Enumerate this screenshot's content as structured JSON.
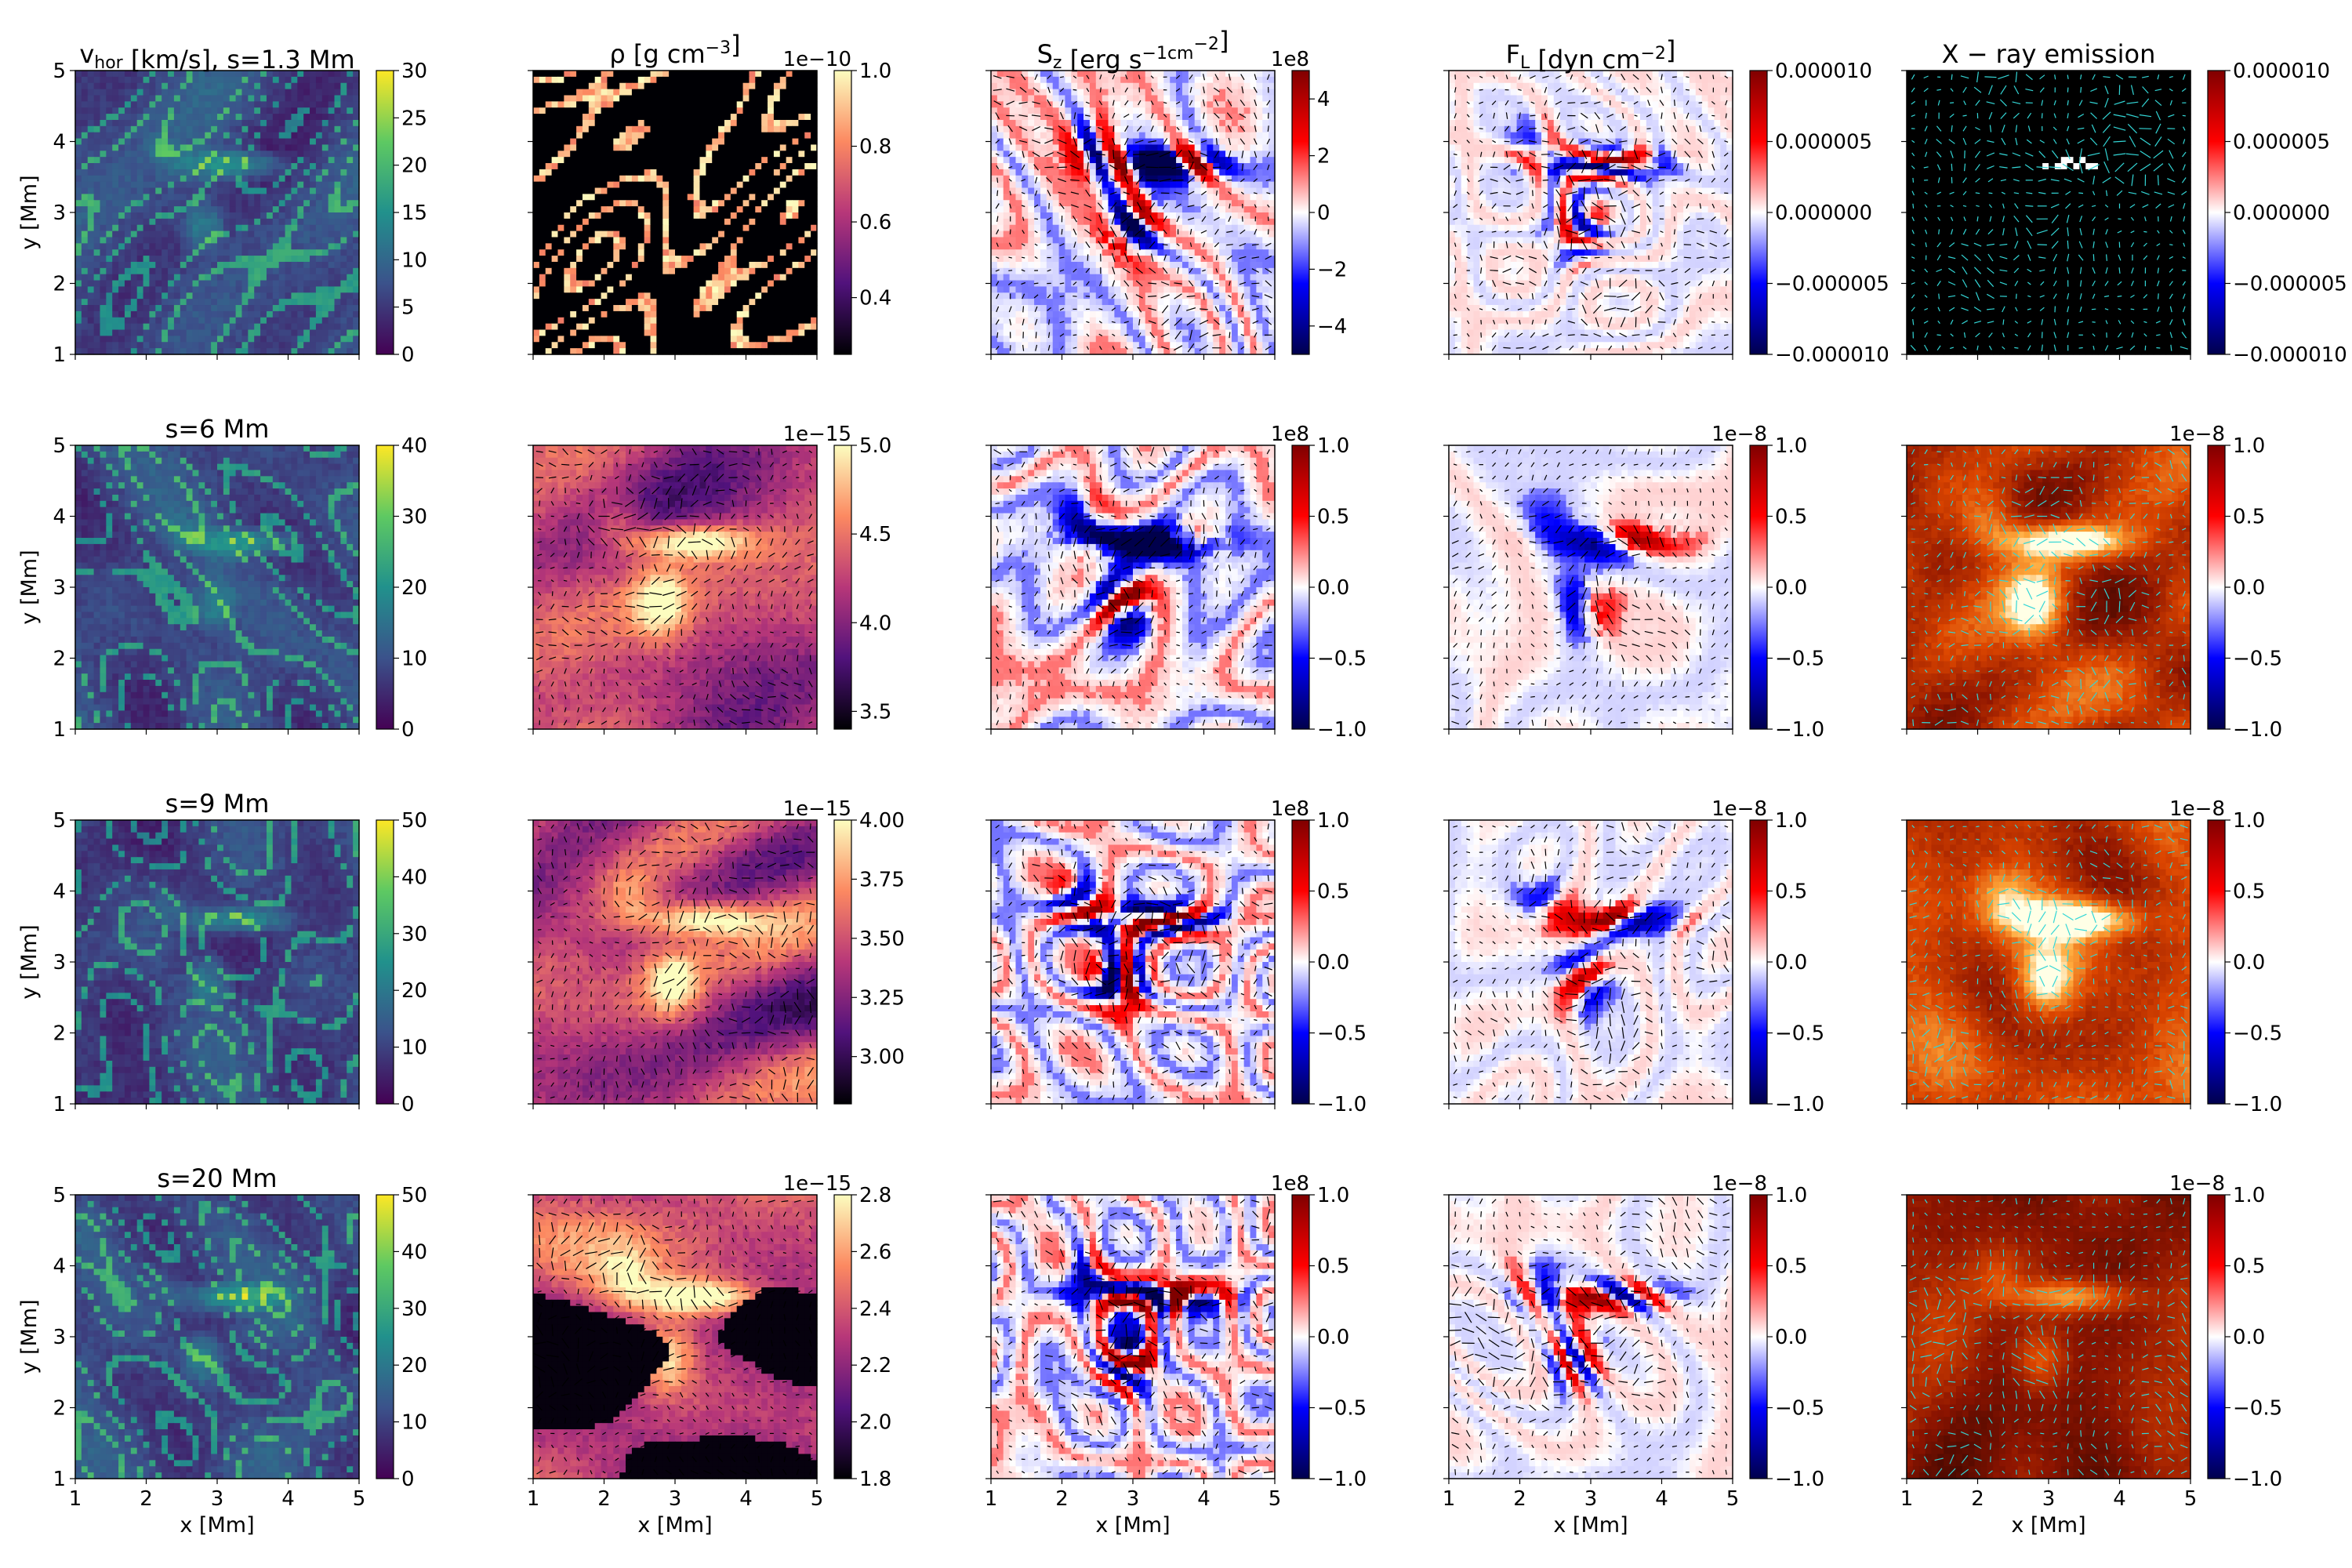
{
  "figure": {
    "rows": [
      {
        "s_label": "s=1.3 Mm"
      },
      {
        "s_label": "s=6 Mm"
      },
      {
        "s_label": "s=9 Mm"
      },
      {
        "s_label": "s=20 Mm"
      }
    ],
    "columns": [
      {
        "quantity": "v_hor [km/s]",
        "colormap": "viridis"
      },
      {
        "quantity": "ρ [g cm^-3]",
        "colormap": "magma"
      },
      {
        "quantity": "S_z [erg s^-1 cm^-2]",
        "colormap": "seismic"
      },
      {
        "quantity": "F_L [dyn cm^-2]",
        "colormap": "seismic"
      },
      {
        "quantity": "X-ray emission",
        "colormap": "seismic-over-hot"
      }
    ]
  },
  "chart_data": [
    {
      "type": "heatmap",
      "row": 0,
      "col": 0,
      "title": "v_hor [km/s],  s=1.3 Mm",
      "xlabel": "",
      "ylabel": "y [Mm]",
      "xlim": [
        1,
        5
      ],
      "ylim": [
        1,
        5
      ],
      "xticks": [
        "",
        "",
        "",
        "",
        ""
      ],
      "yticks": [
        "1",
        "2",
        "3",
        "4",
        "5"
      ],
      "cmap": "viridis",
      "vmin": 0,
      "vmax": 30,
      "cbar_ticks": [
        "0",
        "5",
        "10",
        "15",
        "20",
        "25",
        "30"
      ],
      "cbar_offset": "",
      "arrows": false
    },
    {
      "type": "heatmap",
      "row": 0,
      "col": 1,
      "title": "ρ [g cm^-3]",
      "xlabel": "",
      "ylabel": "",
      "xlim": [
        1,
        5
      ],
      "ylim": [
        1,
        5
      ],
      "xticks": [
        "",
        "",
        "",
        "",
        ""
      ],
      "yticks": [
        "",
        "",
        "",
        "",
        ""
      ],
      "cmap": "magma",
      "vmin": 0.25,
      "vmax": 1.0,
      "cbar_ticks": [
        "0.4",
        "0.6",
        "0.8",
        "1.0"
      ],
      "cbar_offset": "1e−10",
      "arrows": false
    },
    {
      "type": "heatmap",
      "row": 0,
      "col": 2,
      "title": "S_z [erg s^-1cm^-2]",
      "xlabel": "",
      "ylabel": "",
      "xlim": [
        1,
        5
      ],
      "ylim": [
        1,
        5
      ],
      "xticks": [
        "",
        "",
        "",
        "",
        ""
      ],
      "yticks": [
        "",
        "",
        "",
        "",
        ""
      ],
      "cmap": "seismic",
      "vmin": -5,
      "vmax": 5,
      "cbar_ticks": [
        "−4",
        "−2",
        "0",
        "2",
        "4"
      ],
      "cbar_offset": "1e8",
      "arrows": true
    },
    {
      "type": "heatmap",
      "row": 0,
      "col": 3,
      "title": "F_L [dyn cm^-2]",
      "xlabel": "",
      "ylabel": "",
      "xlim": [
        1,
        5
      ],
      "ylim": [
        1,
        5
      ],
      "xticks": [
        "",
        "",
        "",
        "",
        ""
      ],
      "yticks": [
        "",
        "",
        "",
        "",
        ""
      ],
      "cmap": "seismic",
      "vmin": -1e-05,
      "vmax": 1e-05,
      "cbar_ticks": [
        "−0.000010",
        "−0.000005",
        "0.000000",
        "0.000005",
        "0.000010"
      ],
      "cbar_offset": "",
      "arrows": true
    },
    {
      "type": "heatmap",
      "row": 0,
      "col": 4,
      "title": "X − ray emission",
      "xlabel": "",
      "ylabel": "",
      "xlim": [
        1,
        5
      ],
      "ylim": [
        1,
        5
      ],
      "xticks": [
        "",
        "",
        "",
        "",
        ""
      ],
      "yticks": [
        "",
        "",
        "",
        "",
        ""
      ],
      "cmap": "seismic",
      "vmin": -1e-05,
      "vmax": 1e-05,
      "cbar_ticks": [
        "−0.000010",
        "−0.000005",
        "0.000000",
        "0.000005",
        "0.000010"
      ],
      "cbar_offset": "",
      "arrows": true
    },
    {
      "type": "heatmap",
      "row": 1,
      "col": 0,
      "title": "s=6 Mm",
      "xlabel": "",
      "ylabel": "y [Mm]",
      "xlim": [
        1,
        5
      ],
      "ylim": [
        1,
        5
      ],
      "xticks": [
        "",
        "",
        "",
        "",
        ""
      ],
      "yticks": [
        "1",
        "2",
        "3",
        "4",
        "5"
      ],
      "cmap": "viridis",
      "vmin": 0,
      "vmax": 40,
      "cbar_ticks": [
        "0",
        "10",
        "20",
        "30",
        "40"
      ],
      "cbar_offset": "",
      "arrows": false
    },
    {
      "type": "heatmap",
      "row": 1,
      "col": 1,
      "title": "",
      "xlabel": "",
      "ylabel": "",
      "xlim": [
        1,
        5
      ],
      "ylim": [
        1,
        5
      ],
      "xticks": [
        "",
        "",
        "",
        "",
        ""
      ],
      "yticks": [
        "",
        "",
        "",
        "",
        ""
      ],
      "cmap": "magma",
      "vmin": 3.4,
      "vmax": 5.0,
      "cbar_ticks": [
        "3.5",
        "4.0",
        "4.5",
        "5.0"
      ],
      "cbar_offset": "1e−15",
      "arrows": true
    },
    {
      "type": "heatmap",
      "row": 1,
      "col": 2,
      "title": "",
      "xlabel": "",
      "ylabel": "",
      "xlim": [
        1,
        5
      ],
      "ylim": [
        1,
        5
      ],
      "xticks": [
        "",
        "",
        "",
        "",
        ""
      ],
      "yticks": [
        "",
        "",
        "",
        "",
        ""
      ],
      "cmap": "seismic",
      "vmin": -1.0,
      "vmax": 1.0,
      "cbar_ticks": [
        "−1.0",
        "−0.5",
        "0.0",
        "0.5",
        "1.0"
      ],
      "cbar_offset": "1e8",
      "arrows": true
    },
    {
      "type": "heatmap",
      "row": 1,
      "col": 3,
      "title": "",
      "xlabel": "",
      "ylabel": "",
      "xlim": [
        1,
        5
      ],
      "ylim": [
        1,
        5
      ],
      "xticks": [
        "",
        "",
        "",
        "",
        ""
      ],
      "yticks": [
        "",
        "",
        "",
        "",
        ""
      ],
      "cmap": "seismic",
      "vmin": -1.0,
      "vmax": 1.0,
      "cbar_ticks": [
        "−1.0",
        "−0.5",
        "0.0",
        "0.5",
        "1.0"
      ],
      "cbar_offset": "1e−8",
      "arrows": true
    },
    {
      "type": "heatmap",
      "row": 1,
      "col": 4,
      "title": "",
      "xlabel": "",
      "ylabel": "",
      "xlim": [
        1,
        5
      ],
      "ylim": [
        1,
        5
      ],
      "xticks": [
        "",
        "",
        "",
        "",
        ""
      ],
      "yticks": [
        "",
        "",
        "",
        "",
        ""
      ],
      "cmap": "seismic",
      "vmin": -1.0,
      "vmax": 1.0,
      "cbar_ticks": [
        "−1.0",
        "−0.5",
        "0.0",
        "0.5",
        "1.0"
      ],
      "cbar_offset": "1e−8",
      "arrows": true
    },
    {
      "type": "heatmap",
      "row": 2,
      "col": 0,
      "title": "s=9 Mm",
      "xlabel": "",
      "ylabel": "y [Mm]",
      "xlim": [
        1,
        5
      ],
      "ylim": [
        1,
        5
      ],
      "xticks": [
        "",
        "",
        "",
        "",
        ""
      ],
      "yticks": [
        "1",
        "2",
        "3",
        "4",
        "5"
      ],
      "cmap": "viridis",
      "vmin": 0,
      "vmax": 50,
      "cbar_ticks": [
        "0",
        "10",
        "20",
        "30",
        "40",
        "50"
      ],
      "cbar_offset": "",
      "arrows": false
    },
    {
      "type": "heatmap",
      "row": 2,
      "col": 1,
      "title": "",
      "xlabel": "",
      "ylabel": "",
      "xlim": [
        1,
        5
      ],
      "ylim": [
        1,
        5
      ],
      "xticks": [
        "",
        "",
        "",
        "",
        ""
      ],
      "yticks": [
        "",
        "",
        "",
        "",
        ""
      ],
      "cmap": "magma",
      "vmin": 2.8,
      "vmax": 4.0,
      "cbar_ticks": [
        "3.00",
        "3.25",
        "3.50",
        "3.75",
        "4.00"
      ],
      "cbar_offset": "1e−15",
      "arrows": true
    },
    {
      "type": "heatmap",
      "row": 2,
      "col": 2,
      "title": "",
      "xlabel": "",
      "ylabel": "",
      "xlim": [
        1,
        5
      ],
      "ylim": [
        1,
        5
      ],
      "xticks": [
        "",
        "",
        "",
        "",
        ""
      ],
      "yticks": [
        "",
        "",
        "",
        "",
        ""
      ],
      "cmap": "seismic",
      "vmin": -1.0,
      "vmax": 1.0,
      "cbar_ticks": [
        "−1.0",
        "−0.5",
        "0.0",
        "0.5",
        "1.0"
      ],
      "cbar_offset": "1e8",
      "arrows": true
    },
    {
      "type": "heatmap",
      "row": 2,
      "col": 3,
      "title": "",
      "xlabel": "",
      "ylabel": "",
      "xlim": [
        1,
        5
      ],
      "ylim": [
        1,
        5
      ],
      "xticks": [
        "",
        "",
        "",
        "",
        ""
      ],
      "yticks": [
        "",
        "",
        "",
        "",
        ""
      ],
      "cmap": "seismic",
      "vmin": -1.0,
      "vmax": 1.0,
      "cbar_ticks": [
        "−1.0",
        "−0.5",
        "0.0",
        "0.5",
        "1.0"
      ],
      "cbar_offset": "1e−8",
      "arrows": true
    },
    {
      "type": "heatmap",
      "row": 2,
      "col": 4,
      "title": "",
      "xlabel": "",
      "ylabel": "",
      "xlim": [
        1,
        5
      ],
      "ylim": [
        1,
        5
      ],
      "xticks": [
        "",
        "",
        "",
        "",
        ""
      ],
      "yticks": [
        "",
        "",
        "",
        "",
        ""
      ],
      "cmap": "seismic",
      "vmin": -1.0,
      "vmax": 1.0,
      "cbar_ticks": [
        "−1.0",
        "−0.5",
        "0.0",
        "0.5",
        "1.0"
      ],
      "cbar_offset": "1e−8",
      "arrows": true
    },
    {
      "type": "heatmap",
      "row": 3,
      "col": 0,
      "title": "s=20 Mm",
      "xlabel": "x [Mm]",
      "ylabel": "y [Mm]",
      "xlim": [
        1,
        5
      ],
      "ylim": [
        1,
        5
      ],
      "xticks": [
        "1",
        "2",
        "3",
        "4",
        "5"
      ],
      "yticks": [
        "1",
        "2",
        "3",
        "4",
        "5"
      ],
      "cmap": "viridis",
      "vmin": 0,
      "vmax": 50,
      "cbar_ticks": [
        "0",
        "10",
        "20",
        "30",
        "40",
        "50"
      ],
      "cbar_offset": "",
      "arrows": false
    },
    {
      "type": "heatmap",
      "row": 3,
      "col": 1,
      "title": "",
      "xlabel": "x [Mm]",
      "ylabel": "",
      "xlim": [
        1,
        5
      ],
      "ylim": [
        1,
        5
      ],
      "xticks": [
        "1",
        "2",
        "3",
        "4",
        "5"
      ],
      "yticks": [
        "",
        "",
        "",
        "",
        ""
      ],
      "cmap": "magma",
      "vmin": 1.8,
      "vmax": 2.8,
      "cbar_ticks": [
        "1.8",
        "2.0",
        "2.2",
        "2.4",
        "2.6",
        "2.8"
      ],
      "cbar_offset": "1e−15",
      "arrows": true
    },
    {
      "type": "heatmap",
      "row": 3,
      "col": 2,
      "title": "",
      "xlabel": "x [Mm]",
      "ylabel": "",
      "xlim": [
        1,
        5
      ],
      "ylim": [
        1,
        5
      ],
      "xticks": [
        "1",
        "2",
        "3",
        "4",
        "5"
      ],
      "yticks": [
        "",
        "",
        "",
        "",
        ""
      ],
      "cmap": "seismic",
      "vmin": -1.0,
      "vmax": 1.0,
      "cbar_ticks": [
        "−1.0",
        "−0.5",
        "0.0",
        "0.5",
        "1.0"
      ],
      "cbar_offset": "1e8",
      "arrows": true
    },
    {
      "type": "heatmap",
      "row": 3,
      "col": 3,
      "title": "",
      "xlabel": "x [Mm]",
      "ylabel": "",
      "xlim": [
        1,
        5
      ],
      "ylim": [
        1,
        5
      ],
      "xticks": [
        "1",
        "2",
        "3",
        "4",
        "5"
      ],
      "yticks": [
        "",
        "",
        "",
        "",
        ""
      ],
      "cmap": "seismic",
      "vmin": -1.0,
      "vmax": 1.0,
      "cbar_ticks": [
        "−1.0",
        "−0.5",
        "0.0",
        "0.5",
        "1.0"
      ],
      "cbar_offset": "1e−8",
      "arrows": true
    },
    {
      "type": "heatmap",
      "row": 3,
      "col": 4,
      "title": "",
      "xlabel": "x [Mm]",
      "ylabel": "",
      "xlim": [
        1,
        5
      ],
      "ylim": [
        1,
        5
      ],
      "xticks": [
        "1",
        "2",
        "3",
        "4",
        "5"
      ],
      "yticks": [
        "",
        "",
        "",
        "",
        ""
      ],
      "cmap": "seismic",
      "vmin": -1.0,
      "vmax": 1.0,
      "cbar_ticks": [
        "−1.0",
        "−0.5",
        "0.0",
        "0.5",
        "1.0"
      ],
      "cbar_offset": "1e−8",
      "arrows": true
    }
  ]
}
